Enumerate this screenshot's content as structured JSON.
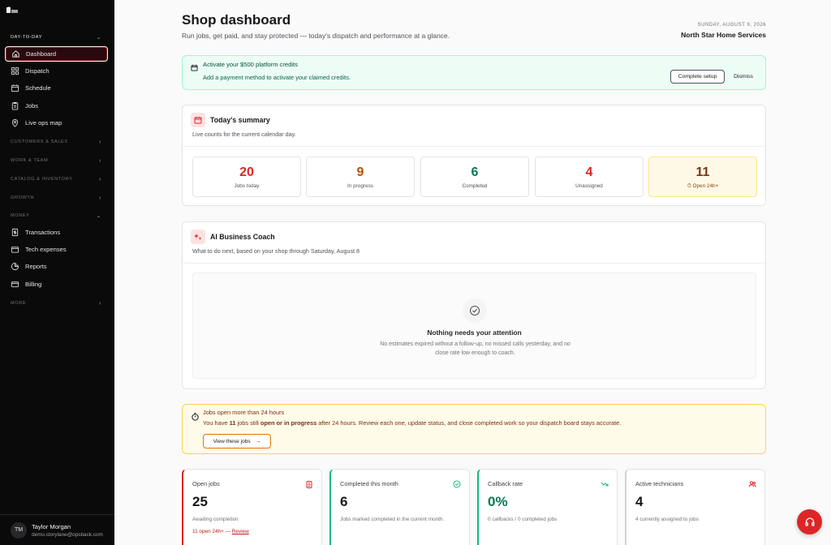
{
  "sidebar": {
    "sections": [
      {
        "label": "DAY-TO-DAY"
      },
      {
        "label": "CUSTOMERS & SALES"
      },
      {
        "label": "WORK & TEAM"
      },
      {
        "label": "CATALOG & INVENTORY"
      },
      {
        "label": "GROWTH"
      },
      {
        "label": "MONEY"
      },
      {
        "label": "MORE"
      }
    ],
    "items": [
      {
        "label": "Dashboard"
      },
      {
        "label": "Dispatch"
      },
      {
        "label": "Schedule"
      },
      {
        "label": "Jobs"
      },
      {
        "label": "Live ops map"
      },
      {
        "label": "Transactions"
      },
      {
        "label": "Tech expenses"
      },
      {
        "label": "Reports"
      },
      {
        "label": "Billing"
      }
    ],
    "user": {
      "initials": "TM",
      "name": "Taylor Morgan",
      "email": "demo.storylane@opsback.com"
    }
  },
  "header": {
    "title": "Shop dashboard",
    "subtitle": "Run jobs, get paid, and stay protected — today's dispatch and performance at a glance.",
    "date": "SUNDAY, AUGUST 9, 2026",
    "company": "North Star Home Services"
  },
  "credits": {
    "title": "Activate your $500 platform credits",
    "text": "Add a payment method to activate your claimed credits.",
    "primary_label": "Complete setup",
    "dismiss_label": "Dismiss"
  },
  "summary": {
    "title": "Today's summary",
    "subtitle": "Live counts for the current calendar day.",
    "stats": [
      {
        "value": "20",
        "label": "Jobs today",
        "color": "#dc2626"
      },
      {
        "value": "9",
        "label": "In progress",
        "color": "#b45309"
      },
      {
        "value": "6",
        "label": "Completed",
        "color": "#047857"
      },
      {
        "value": "4",
        "label": "Unassigned",
        "color": "#dc2626"
      },
      {
        "value": "11",
        "label": "Open 24h+",
        "color": "#78350f"
      }
    ]
  },
  "coach": {
    "title": "AI Business Coach",
    "subtitle": "What to do next, based on your shop through Saturday, August 8",
    "empty_title": "Nothing needs your attention",
    "empty_text": "No estimates expired without a follow-up, no missed calls yesterday, and no close rate low enough to coach."
  },
  "alert": {
    "title": "Jobs open more than 24 hours",
    "text_before": "You have ",
    "count": "11",
    "text_mid1": " jobs still ",
    "status": "open or in progress",
    "text_after": " after 24 hours. Review each one, update status, and close completed work so your dispatch board stays accurate.",
    "button_label": "View these jobs"
  },
  "kpis": [
    {
      "label": "Open jobs",
      "value": "25",
      "sub": "Awaiting completion",
      "foot": "11 open 24h+ — ",
      "foot_link": "Review",
      "color": "#dc2626",
      "value_color": "#18181b"
    },
    {
      "label": "Completed this month",
      "value": "6",
      "sub": "Jobs marked completed in the current month.",
      "color": "#10b981",
      "value_color": "#18181b"
    },
    {
      "label": "Callback rate",
      "value": "0%",
      "sub": "0 callbacks / 0 completed jobs",
      "color": "#10b981",
      "value_color": "#047857"
    },
    {
      "label": "Active technicians",
      "value": "4",
      "sub": "4 currently assigned to jobs",
      "color": "#d4d4d8",
      "value_color": "#18181b"
    }
  ]
}
